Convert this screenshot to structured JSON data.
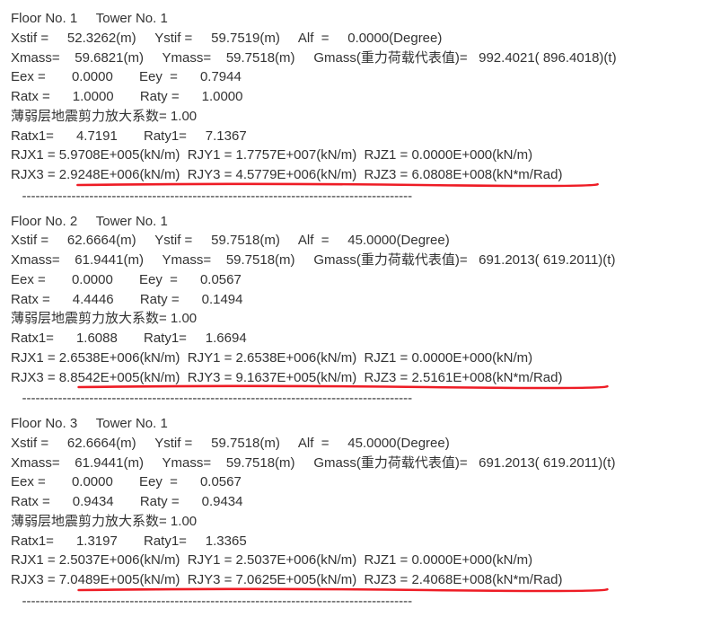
{
  "underline_color": "#ee1c25",
  "text_color": "#333333",
  "background": "#ffffff",
  "font_size": 15,
  "floors": [
    {
      "header": "Floor No. 1     Tower No. 1",
      "xstif": "52.3262(m)",
      "ystif": "59.7519(m)",
      "alf": "0.0000(Degree)",
      "xmass": "59.6821(m)",
      "ymass": "59.7518(m)",
      "gmass_label": "Gmass(重力荷载代表值)=",
      "gmass": "992.4021( 896.4018)(t)",
      "eex": "0.0000",
      "eey": "0.7944",
      "ratx": "1.0000",
      "raty": "1.0000",
      "weak_label": "薄弱层地震剪力放大系数=",
      "weak": "1.00",
      "ratx1": "4.7191",
      "raty1": "7.1367",
      "rjx1": "5.9708E+005(kN/m)",
      "rjy1": "1.7757E+007(kN/m)",
      "rjz1": "0.0000E+000(kN/m)",
      "rjx3": "2.9248E+006(kN/m)",
      "rjy3": "4.5779E+006(kN/m)",
      "rjz3": "6.0808E+008(kN*m/Rad)",
      "underline_width": 728,
      "separator": "   ---------------------------------------------------------------------------------------"
    },
    {
      "header": "Floor No. 2     Tower No. 1",
      "xstif": "62.6664(m)",
      "ystif": "59.7518(m)",
      "alf": "45.0000(Degree)",
      "xmass": "61.9441(m)",
      "ymass": "59.7518(m)",
      "gmass_label": "Gmass(重力荷载代表值)=",
      "gmass": "691.2013( 619.2011)(t)",
      "eex": "0.0000",
      "eey": "0.0567",
      "ratx": "4.4446",
      "raty": "0.1494",
      "weak_label": "薄弱层地震剪力放大系数=",
      "weak": "1.00",
      "ratx1": "1.6088",
      "raty1": "1.6694",
      "rjx1": "2.6538E+006(kN/m)",
      "rjy1": "2.6538E+006(kN/m)",
      "rjz1": "0.0000E+000(kN/m)",
      "rjx3": "8.8542E+005(kN/m)",
      "rjy3": "9.1637E+005(kN/m)",
      "rjz3": "2.5161E+008(kN*m/Rad)",
      "underline_width": 740,
      "separator": "   ---------------------------------------------------------------------------------------"
    },
    {
      "header": "Floor No. 3     Tower No. 1",
      "xstif": "62.6664(m)",
      "ystif": "59.7518(m)",
      "alf": "45.0000(Degree)",
      "xmass": "61.9441(m)",
      "ymass": "59.7518(m)",
      "gmass_label": "Gmass(重力荷载代表值)=",
      "gmass": "691.2013( 619.2011)(t)",
      "eex": "0.0000",
      "eey": "0.0567",
      "ratx": "0.9434",
      "raty": "0.9434",
      "weak_label": "薄弱层地震剪力放大系数=",
      "weak": "1.00",
      "ratx1": "1.3197",
      "raty1": "1.3365",
      "rjx1": "2.5037E+006(kN/m)",
      "rjy1": "2.5037E+006(kN/m)",
      "rjz1": "0.0000E+000(kN/m)",
      "rjx3": "7.0489E+005(kN/m)",
      "rjy3": "7.0625E+005(kN/m)",
      "rjz3": "2.4068E+008(kN*m/Rad)",
      "underline_width": 740,
      "separator": "   ---------------------------------------------------------------------------------------"
    }
  ]
}
